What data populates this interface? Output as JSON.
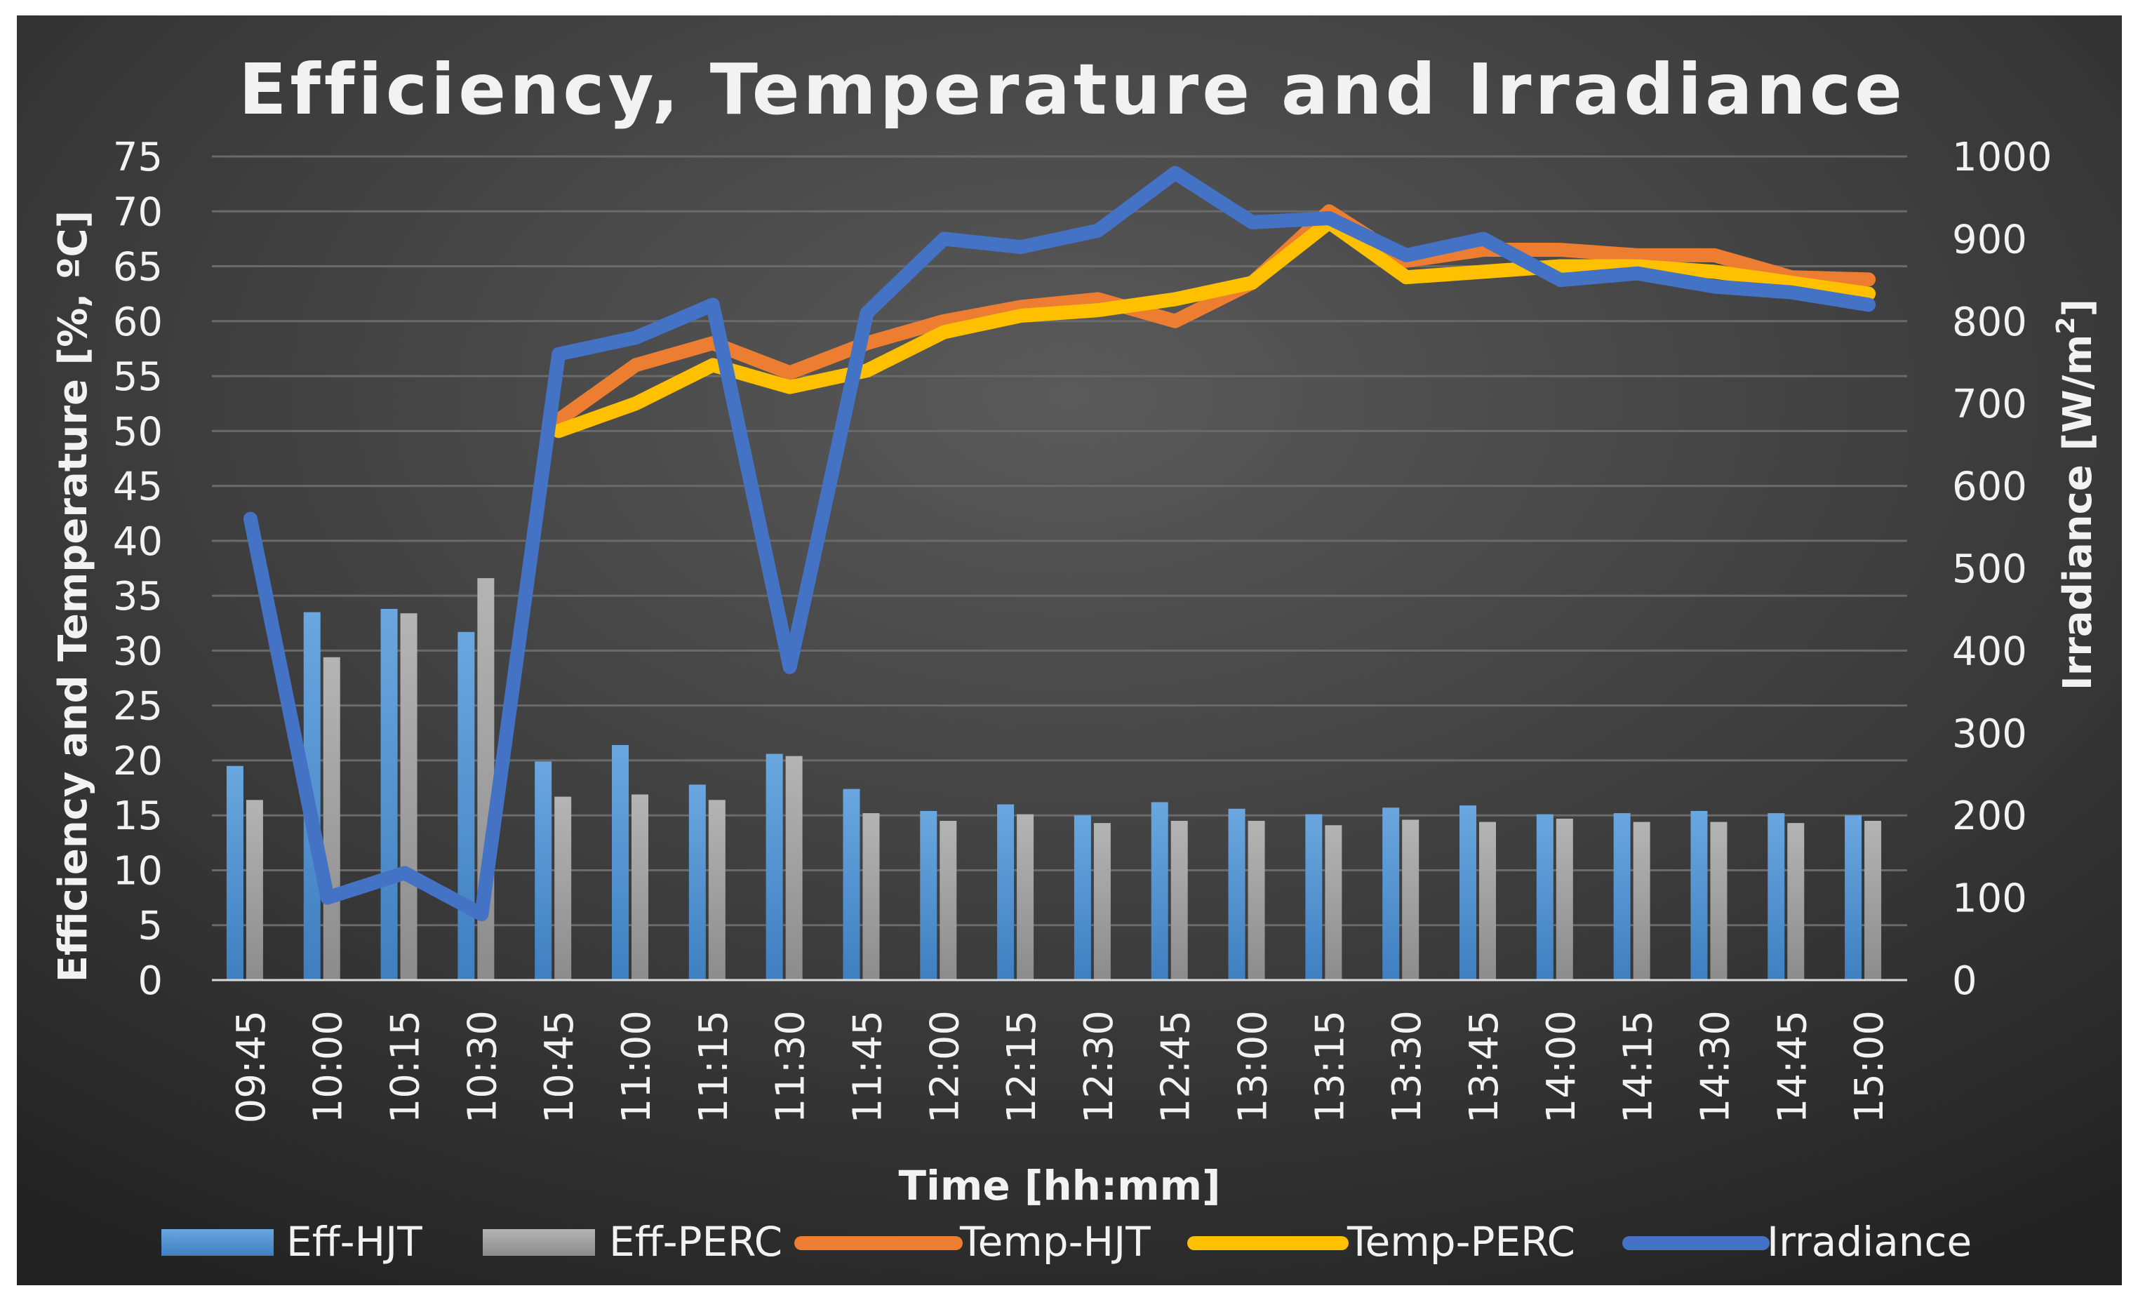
{
  "chart_data": {
    "type": "bar",
    "title": "Efficiency, Temperature and Irradiance",
    "xlabel": "Time [hh:mm]",
    "ylabel": "Efficiency and Temperature [%, ºC]",
    "y2label_main": "Irradiance [W/m",
    "y2label_sup": "2",
    "y2label_end": "]",
    "ylim": [
      0,
      75
    ],
    "y2lim": [
      0,
      1000
    ],
    "yticks": [
      "0",
      "5",
      "10",
      "15",
      "20",
      "25",
      "30",
      "35",
      "40",
      "45",
      "50",
      "55",
      "60",
      "65",
      "70",
      "75"
    ],
    "y2ticks": [
      "0",
      "100",
      "200",
      "300",
      "400",
      "500",
      "600",
      "700",
      "800",
      "900",
      "1000"
    ],
    "categories": [
      "09:45",
      "10:00",
      "10:15",
      "10:30",
      "10:45",
      "11:00",
      "11:15",
      "11:30",
      "11:45",
      "12:00",
      "12:15",
      "12:30",
      "12:45",
      "13:00",
      "13:15",
      "13:30",
      "13:45",
      "14:00",
      "14:15",
      "14:30",
      "14:45",
      "15:00"
    ],
    "bar_series": [
      {
        "name": "Eff-HJT",
        "color": "#5b9bd5",
        "values": [
          19.5,
          33.5,
          33.8,
          31.7,
          19.9,
          21.4,
          17.8,
          20.6,
          17.4,
          15.4,
          16.0,
          15.0,
          16.2,
          15.6,
          15.1,
          15.7,
          15.9,
          15.1,
          15.2,
          15.4,
          15.2,
          15.0
        ]
      },
      {
        "name": "Eff-PERC",
        "color": "#a5a5a5",
        "values": [
          16.4,
          29.4,
          33.4,
          36.6,
          16.7,
          16.9,
          16.4,
          20.4,
          15.2,
          14.5,
          15.1,
          14.3,
          14.5,
          14.5,
          14.1,
          14.6,
          14.4,
          14.7,
          14.4,
          14.4,
          14.3,
          14.5
        ]
      }
    ],
    "line_series": [
      {
        "name": "Temp-HJT",
        "color": "#ed7d31",
        "axis": "left",
        "start_index": 4,
        "values": [
          51.0,
          56.0,
          58.0,
          55.3,
          58.0,
          60.0,
          61.3,
          62.0,
          60.0,
          63.5,
          70.0,
          65.5,
          66.5,
          66.5,
          66.0,
          66.0,
          64.0,
          63.8
        ]
      },
      {
        "name": "Temp-PERC",
        "color": "#ffc000",
        "axis": "left",
        "start_index": 4,
        "values": [
          50.0,
          52.5,
          56.0,
          54.0,
          55.5,
          59.0,
          60.5,
          61.0,
          62.0,
          63.5,
          69.0,
          64.0,
          64.5,
          65.0,
          65.0,
          64.5,
          63.5,
          62.5
        ]
      },
      {
        "name": "Irradiance",
        "color": "#4472c4",
        "axis": "right",
        "start_index": 0,
        "values": [
          560,
          100,
          130,
          80,
          760,
          780,
          820,
          380,
          810,
          900,
          890,
          910,
          980,
          920,
          925,
          880,
          900,
          850,
          858,
          842,
          835,
          820
        ]
      }
    ]
  }
}
